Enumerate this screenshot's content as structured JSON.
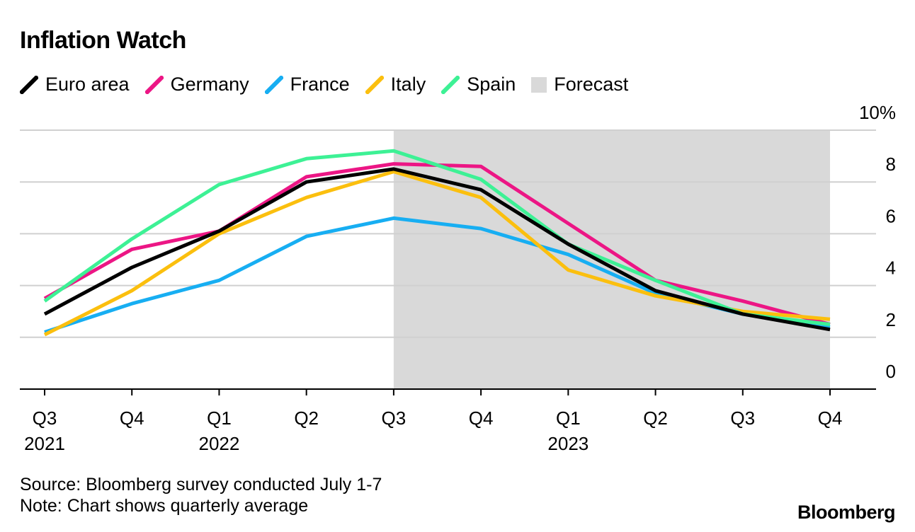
{
  "title": "Inflation Watch",
  "legend": [
    {
      "label": "Euro area",
      "color": "#000000",
      "kind": "line"
    },
    {
      "label": "Germany",
      "color": "#ec1685",
      "kind": "line"
    },
    {
      "label": "France",
      "color": "#17aef2",
      "kind": "line"
    },
    {
      "label": "Italy",
      "color": "#fbbf0e",
      "kind": "line"
    },
    {
      "label": "Spain",
      "color": "#3df195",
      "kind": "line"
    },
    {
      "label": "Forecast",
      "color": "#d9d9d9",
      "kind": "box"
    }
  ],
  "chart_data": {
    "type": "line",
    "title": "Inflation Watch",
    "categories": [
      "Q3",
      "Q4",
      "Q1",
      "Q2",
      "Q3",
      "Q4",
      "Q1",
      "Q2",
      "Q3",
      "Q4"
    ],
    "year_labels": [
      "2021",
      "",
      "2022",
      "",
      "",
      "",
      "2023",
      "",
      "",
      ""
    ],
    "y_ticks": [
      "0",
      "2",
      "4",
      "6",
      "8",
      "10%"
    ],
    "ylim": [
      0,
      10
    ],
    "forecast_start_index": 4,
    "forecast_end_index": 9,
    "forecast_label": "Forecast",
    "series": [
      {
        "name": "Germany",
        "color": "#ec1685",
        "values": [
          3.5,
          5.4,
          6.1,
          8.2,
          8.7,
          8.6,
          6.4,
          4.2,
          3.4,
          2.5
        ]
      },
      {
        "name": "France",
        "color": "#17aef2",
        "values": [
          2.2,
          3.3,
          4.2,
          5.9,
          6.6,
          6.2,
          5.2,
          3.7,
          2.9,
          2.4
        ]
      },
      {
        "name": "Italy",
        "color": "#fbbf0e",
        "values": [
          2.1,
          3.8,
          6.0,
          7.4,
          8.4,
          7.4,
          4.6,
          3.6,
          3.0,
          2.7
        ]
      },
      {
        "name": "Spain",
        "color": "#3df195",
        "values": [
          3.4,
          5.8,
          7.9,
          8.9,
          9.2,
          8.1,
          5.6,
          4.2,
          2.9,
          2.5
        ]
      },
      {
        "name": "Euro area",
        "color": "#000000",
        "values": [
          2.9,
          4.7,
          6.1,
          8.0,
          8.5,
          7.7,
          5.6,
          3.8,
          2.9,
          2.3
        ]
      }
    ]
  },
  "footer": {
    "source": "Source: Bloomberg survey conducted July 1-7",
    "note": "Note: Chart shows quarterly average"
  },
  "brand": "Bloomberg"
}
